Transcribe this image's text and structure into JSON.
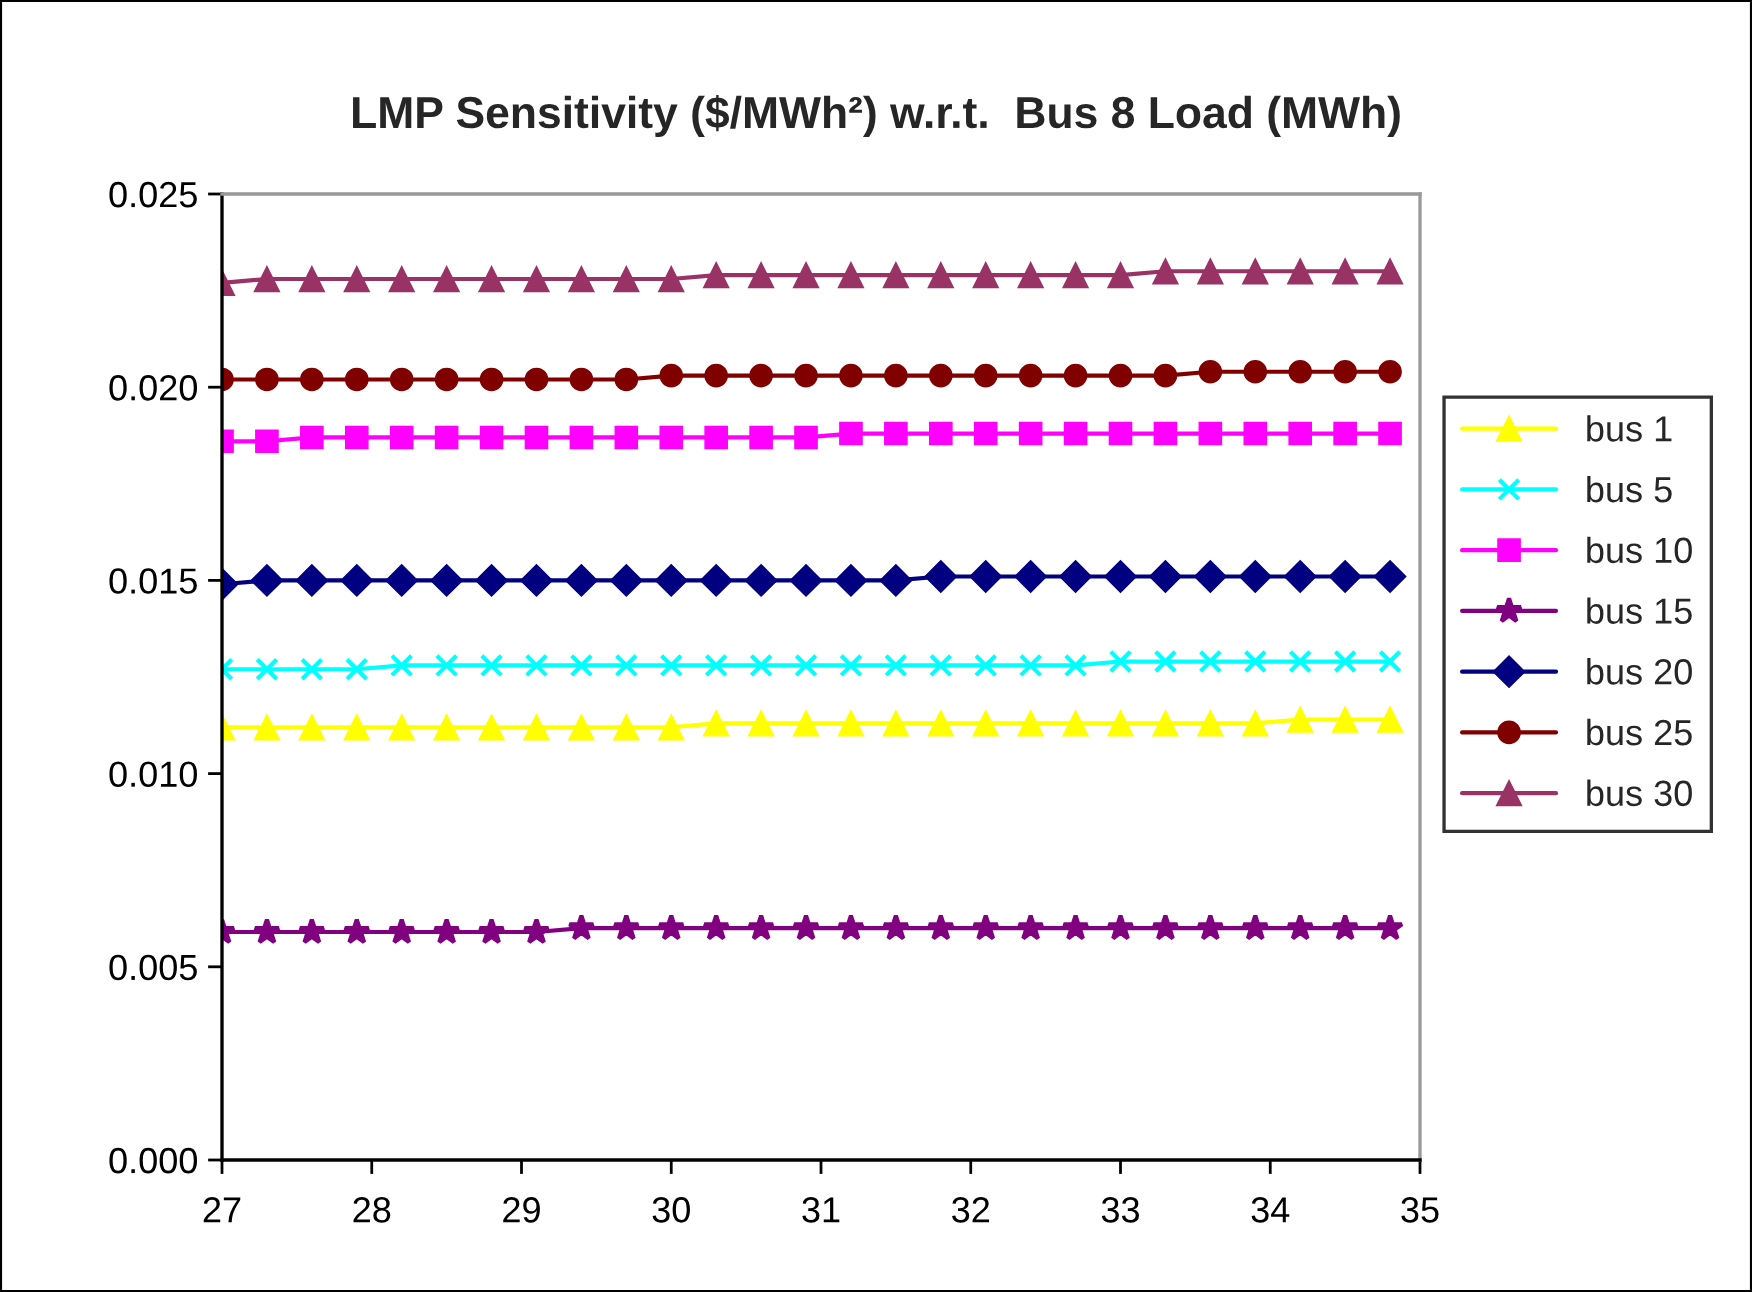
{
  "chart_data": {
    "type": "line",
    "title": "LMP Sensitivity ($/MWh²) w.r.t.  Bus 8 Load (MWh)",
    "x": [
      27,
      27.3,
      27.6,
      27.9,
      28.2,
      28.5,
      28.8,
      29.1,
      29.4,
      29.7,
      30,
      30.3,
      30.6,
      30.9,
      31.2,
      31.5,
      31.8,
      32.1,
      32.4,
      32.7,
      33,
      33.3,
      33.6,
      33.9,
      34.2,
      34.5,
      34.8
    ],
    "series": [
      {
        "name": "bus 1",
        "color": "#ffff00",
        "marker": "triangle",
        "values": [
          0.0112,
          0.0112,
          0.0112,
          0.0112,
          0.0112,
          0.0112,
          0.0112,
          0.0112,
          0.0112,
          0.0112,
          0.0112,
          0.0113,
          0.0113,
          0.0113,
          0.0113,
          0.0113,
          0.0113,
          0.0113,
          0.0113,
          0.0113,
          0.0113,
          0.0113,
          0.0113,
          0.0113,
          0.0114,
          0.0114,
          0.0114
        ]
      },
      {
        "name": "bus 5",
        "color": "#00ffff",
        "marker": "cross",
        "values": [
          0.0127,
          0.0127,
          0.0127,
          0.0127,
          0.0128,
          0.0128,
          0.0128,
          0.0128,
          0.0128,
          0.0128,
          0.0128,
          0.0128,
          0.0128,
          0.0128,
          0.0128,
          0.0128,
          0.0128,
          0.0128,
          0.0128,
          0.0128,
          0.0129,
          0.0129,
          0.0129,
          0.0129,
          0.0129,
          0.0129,
          0.0129
        ]
      },
      {
        "name": "bus 10",
        "color": "#ff00ff",
        "marker": "square",
        "values": [
          0.0186,
          0.0186,
          0.0187,
          0.0187,
          0.0187,
          0.0187,
          0.0187,
          0.0187,
          0.0187,
          0.0187,
          0.0187,
          0.0187,
          0.0187,
          0.0187,
          0.0188,
          0.0188,
          0.0188,
          0.0188,
          0.0188,
          0.0188,
          0.0188,
          0.0188,
          0.0188,
          0.0188,
          0.0188,
          0.0188,
          0.0188
        ]
      },
      {
        "name": "bus 15",
        "color": "#800080",
        "marker": "star",
        "values": [
          0.0059,
          0.0059,
          0.0059,
          0.0059,
          0.0059,
          0.0059,
          0.0059,
          0.0059,
          0.006,
          0.006,
          0.006,
          0.006,
          0.006,
          0.006,
          0.006,
          0.006,
          0.006,
          0.006,
          0.006,
          0.006,
          0.006,
          0.006,
          0.006,
          0.006,
          0.006,
          0.006,
          0.006
        ]
      },
      {
        "name": "bus 20",
        "color": "#000080",
        "marker": "diamond",
        "values": [
          0.0149,
          0.015,
          0.015,
          0.015,
          0.015,
          0.015,
          0.015,
          0.015,
          0.015,
          0.015,
          0.015,
          0.015,
          0.015,
          0.015,
          0.015,
          0.015,
          0.0151,
          0.0151,
          0.0151,
          0.0151,
          0.0151,
          0.0151,
          0.0151,
          0.0151,
          0.0151,
          0.0151,
          0.0151
        ]
      },
      {
        "name": "bus 25",
        "color": "#800000",
        "marker": "circle",
        "values": [
          0.0202,
          0.0202,
          0.0202,
          0.0202,
          0.0202,
          0.0202,
          0.0202,
          0.0202,
          0.0202,
          0.0202,
          0.0203,
          0.0203,
          0.0203,
          0.0203,
          0.0203,
          0.0203,
          0.0203,
          0.0203,
          0.0203,
          0.0203,
          0.0203,
          0.0203,
          0.0204,
          0.0204,
          0.0204,
          0.0204,
          0.0204
        ]
      },
      {
        "name": "bus 30",
        "color": "#993366",
        "marker": "triangle",
        "values": [
          0.0227,
          0.0228,
          0.0228,
          0.0228,
          0.0228,
          0.0228,
          0.0228,
          0.0228,
          0.0228,
          0.0228,
          0.0228,
          0.0229,
          0.0229,
          0.0229,
          0.0229,
          0.0229,
          0.0229,
          0.0229,
          0.0229,
          0.0229,
          0.0229,
          0.023,
          0.023,
          0.023,
          0.023,
          0.023,
          0.023
        ]
      }
    ],
    "xlim": [
      27,
      35
    ],
    "xticks": [
      27,
      28,
      29,
      30,
      31,
      32,
      33,
      34,
      35
    ],
    "ylim": [
      0,
      0.025
    ],
    "yticks": [
      {
        "value": 0,
        "label": "0.000"
      },
      {
        "value": 0.005,
        "label": "0.005"
      },
      {
        "value": 0.01,
        "label": "0.010"
      },
      {
        "value": 0.015,
        "label": "0.015"
      },
      {
        "value": 0.02,
        "label": "0.020"
      },
      {
        "value": 0.025,
        "label": "0.025"
      }
    ],
    "grid": false,
    "legend": "right",
    "line_style": "solid"
  }
}
